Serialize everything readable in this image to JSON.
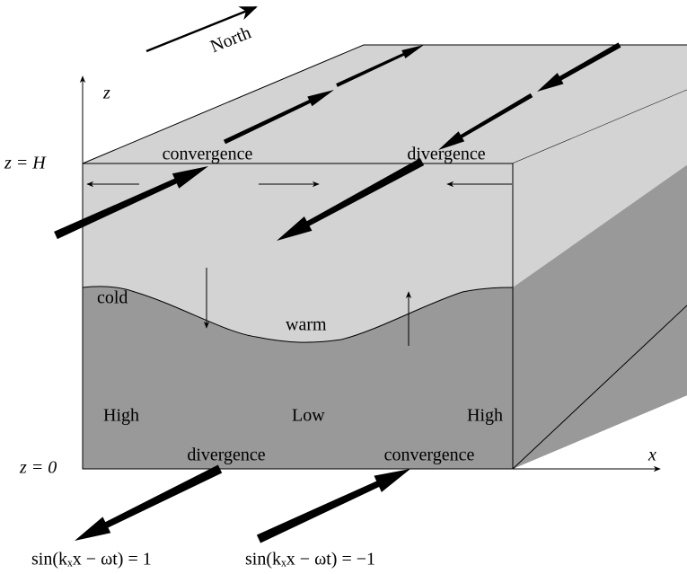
{
  "compass": "North",
  "axes": {
    "z": "z",
    "x": "x",
    "top_level": "z = H",
    "bottom_level": "z = 0"
  },
  "surface": {
    "left": "convergence",
    "right": "divergence"
  },
  "interface": {
    "cold": "cold",
    "warm": "warm"
  },
  "pressure": {
    "left": "High",
    "middle": "Low",
    "right": "High"
  },
  "bottom": {
    "left": "divergence",
    "right": "convergence"
  },
  "phase": {
    "left": "sin(kₓx − ωt) = 1",
    "right": "sin(kₓx − ωt) = −1"
  }
}
